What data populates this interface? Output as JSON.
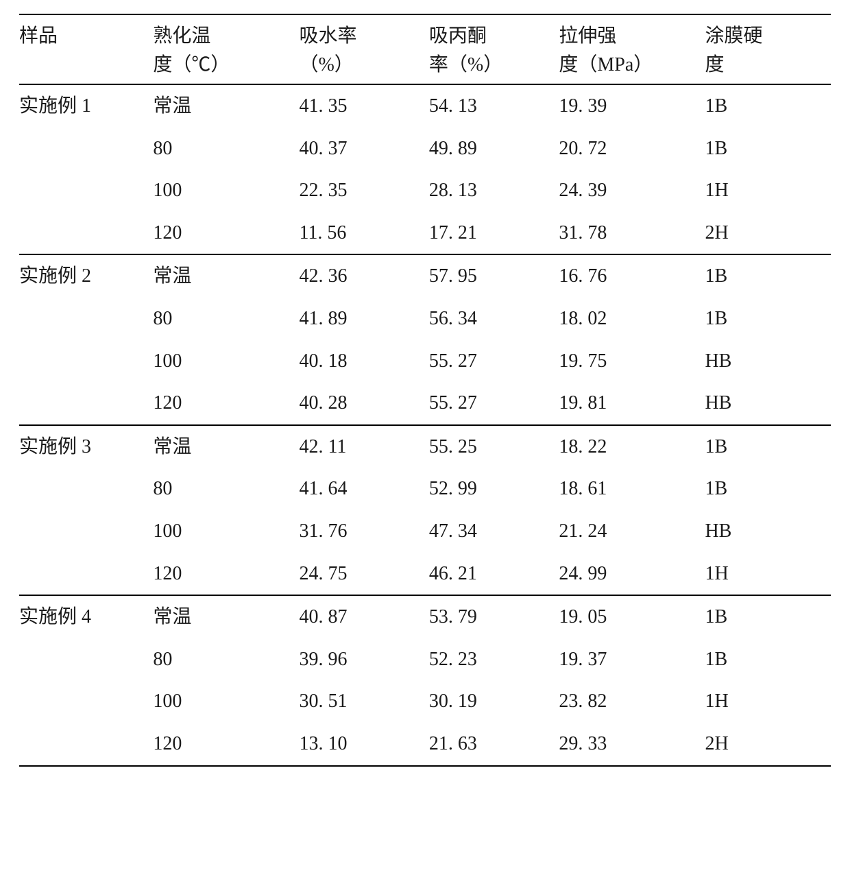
{
  "table": {
    "columns": [
      {
        "line1": "样品",
        "line2": ""
      },
      {
        "line1": "熟化温",
        "line2": "度（℃）"
      },
      {
        "line1": "吸水率",
        "line2": "（%）"
      },
      {
        "line1": "吸丙酮",
        "line2": "率（%）"
      },
      {
        "line1": "拉伸强",
        "line2": "度（MPa）"
      },
      {
        "line1": "涂膜硬",
        "line2": "度"
      }
    ],
    "groups": [
      {
        "sample": "实施例 1",
        "rows": [
          {
            "temp": "常温",
            "water": "41. 35",
            "acetone": "54. 13",
            "tensile": "19. 39",
            "hardness": "1B"
          },
          {
            "temp": "80",
            "water": "40. 37",
            "acetone": "49. 89",
            "tensile": "20. 72",
            "hardness": "1B"
          },
          {
            "temp": "100",
            "water": "22. 35",
            "acetone": "28. 13",
            "tensile": "24. 39",
            "hardness": "1H"
          },
          {
            "temp": "120",
            "water": "11. 56",
            "acetone": "17. 21",
            "tensile": "31. 78",
            "hardness": "2H"
          }
        ]
      },
      {
        "sample": "实施例 2",
        "rows": [
          {
            "temp": "常温",
            "water": "42. 36",
            "acetone": "57. 95",
            "tensile": "16. 76",
            "hardness": "1B"
          },
          {
            "temp": "80",
            "water": "41. 89",
            "acetone": "56. 34",
            "tensile": "18. 02",
            "hardness": "1B"
          },
          {
            "temp": "100",
            "water": "40. 18",
            "acetone": "55. 27",
            "tensile": "19. 75",
            "hardness": "HB"
          },
          {
            "temp": "120",
            "water": "40. 28",
            "acetone": "55. 27",
            "tensile": "19. 81",
            "hardness": "HB"
          }
        ]
      },
      {
        "sample": "实施例 3",
        "rows": [
          {
            "temp": "常温",
            "water": "42. 11",
            "acetone": "55. 25",
            "tensile": "18. 22",
            "hardness": "1B"
          },
          {
            "temp": "80",
            "water": "41. 64",
            "acetone": "52. 99",
            "tensile": "18. 61",
            "hardness": "1B"
          },
          {
            "temp": "100",
            "water": "31. 76",
            "acetone": "47. 34",
            "tensile": "21. 24",
            "hardness": "HB"
          },
          {
            "temp": "120",
            "water": "24. 75",
            "acetone": "46. 21",
            "tensile": "24. 99",
            "hardness": "1H"
          }
        ]
      },
      {
        "sample": "实施例 4",
        "rows": [
          {
            "temp": "常温",
            "water": "40. 87",
            "acetone": "53. 79",
            "tensile": "19. 05",
            "hardness": "1B"
          },
          {
            "temp": "80",
            "water": "39. 96",
            "acetone": "52. 23",
            "tensile": "19. 37",
            "hardness": "1B"
          },
          {
            "temp": "100",
            "water": "30. 51",
            "acetone": "30. 19",
            "tensile": "23. 82",
            "hardness": "1H"
          },
          {
            "temp": "120",
            "water": "13. 10",
            "acetone": "21. 63",
            "tensile": "29. 33",
            "hardness": "2H"
          }
        ]
      }
    ]
  }
}
